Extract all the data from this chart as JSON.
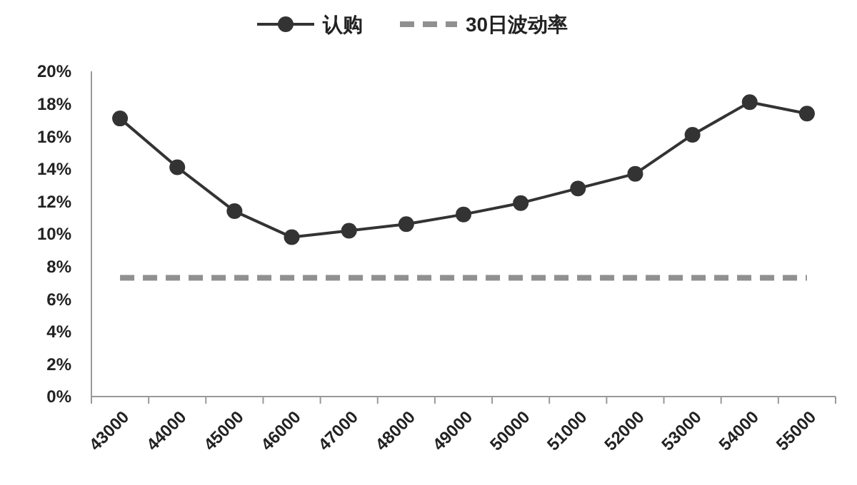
{
  "chart_data": {
    "type": "line",
    "categories": [
      "43000",
      "44000",
      "45000",
      "46000",
      "47000",
      "48000",
      "49000",
      "50000",
      "51000",
      "52000",
      "53000",
      "54000",
      "55000"
    ],
    "series": [
      {
        "name": "认购",
        "color": "#333333",
        "marker": "circle",
        "line_style": "solid",
        "values": [
          17.1,
          14.1,
          11.4,
          9.8,
          10.2,
          10.6,
          11.2,
          11.9,
          12.8,
          13.7,
          16.1,
          18.1,
          17.4
        ]
      },
      {
        "name": "30日波动率",
        "color": "#909090",
        "marker": "none",
        "line_style": "dashed",
        "values": [
          7.3,
          7.3,
          7.3,
          7.3,
          7.3,
          7.3,
          7.3,
          7.3,
          7.3,
          7.3,
          7.3,
          7.3,
          7.3
        ]
      }
    ],
    "ylim": [
      0,
      20
    ],
    "yticks": [
      {
        "value": 0,
        "label": "0%"
      },
      {
        "value": 2,
        "label": "2%"
      },
      {
        "value": 4,
        "label": "4%"
      },
      {
        "value": 6,
        "label": "6%"
      },
      {
        "value": 8,
        "label": "8%"
      },
      {
        "value": 10,
        "label": "10%"
      },
      {
        "value": 12,
        "label": "12%"
      },
      {
        "value": 14,
        "label": "14%"
      },
      {
        "value": 16,
        "label": "16%"
      },
      {
        "value": 18,
        "label": "18%"
      },
      {
        "value": 20,
        "label": "20%"
      }
    ],
    "grid": false,
    "legend": "top"
  }
}
